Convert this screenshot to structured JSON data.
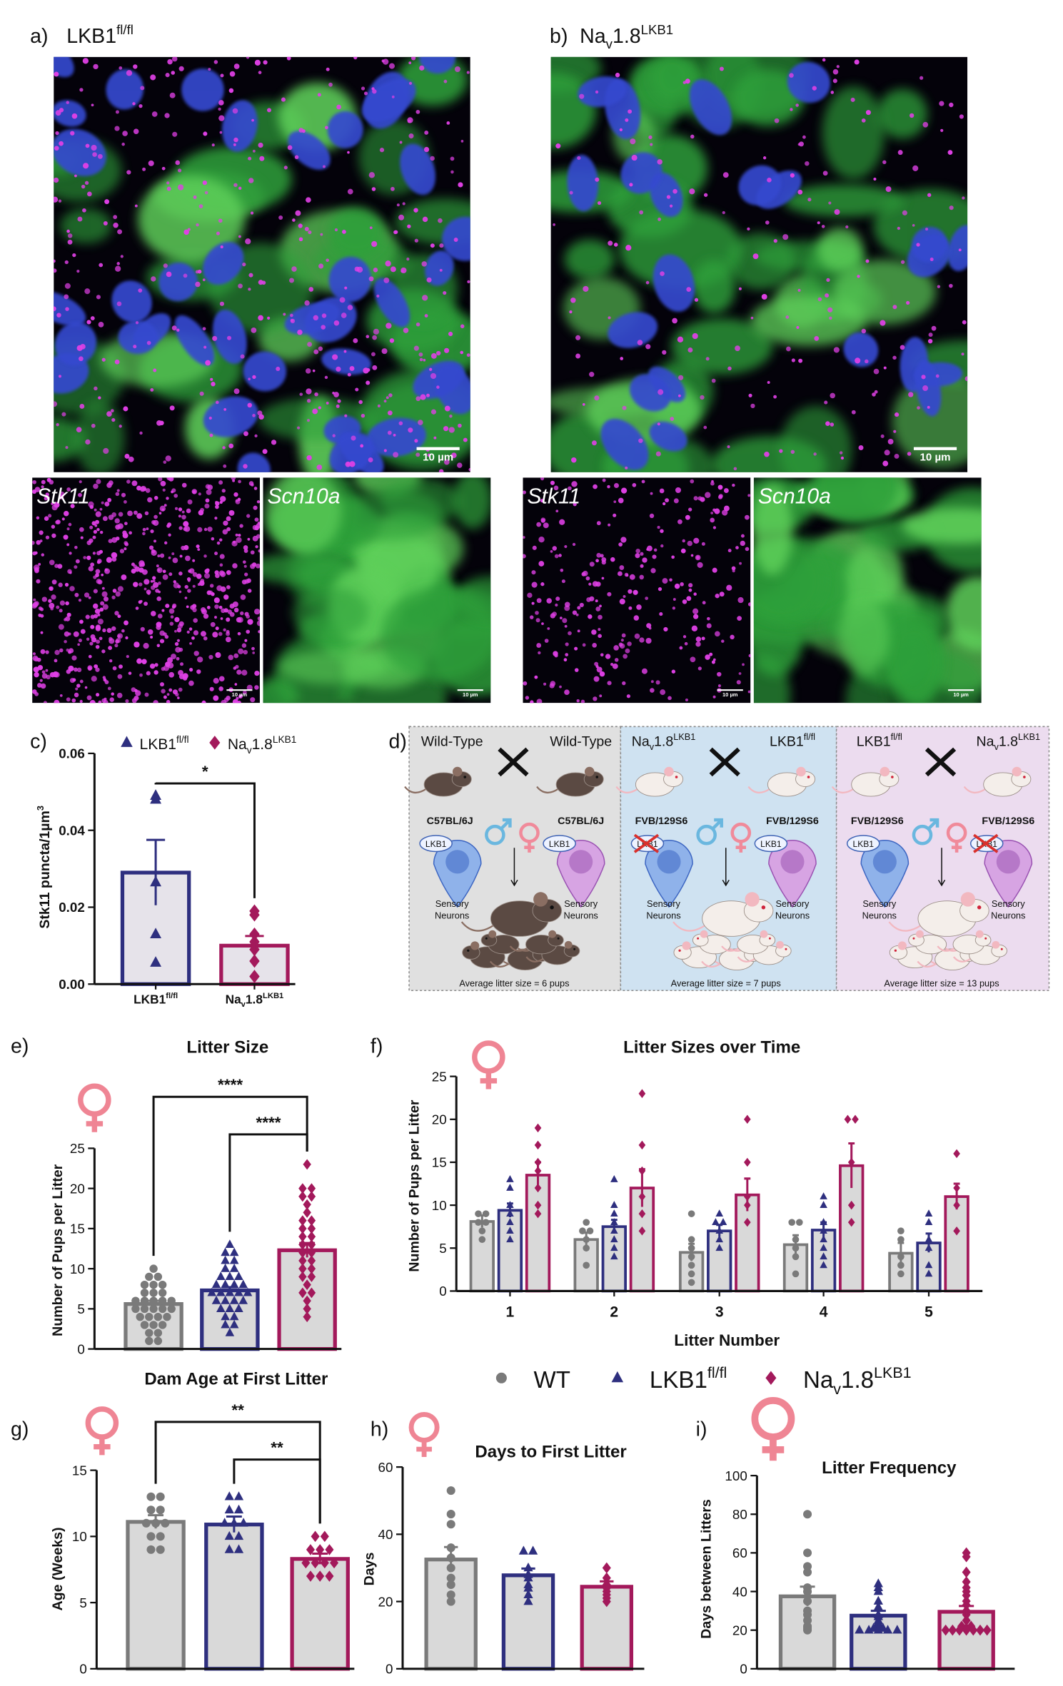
{
  "panels": {
    "a": {
      "label": "a)",
      "title": [
        {
          "t": "LKB1"
        },
        {
          "t": "fl/fl",
          "sup": true
        }
      ],
      "scale_bar": "10 µm",
      "insets": [
        {
          "label": "Stk11",
          "scale_bar": "10 µm"
        },
        {
          "label": "Scn10a",
          "scale_bar": "10 µm"
        }
      ]
    },
    "b": {
      "label": "b)",
      "title": [
        {
          "t": "Na"
        },
        {
          "t": "v",
          "sub": true
        },
        {
          "t": "1.8"
        },
        {
          "t": "LKB1",
          "sup": true
        }
      ],
      "scale_bar": "10 µm",
      "insets": [
        {
          "label": "Stk11",
          "scale_bar": "10 µm"
        },
        {
          "label": "Scn10a",
          "scale_bar": "10 µm"
        }
      ]
    },
    "d": {
      "label": "d)",
      "crosses": [
        {
          "male": [
            {
              "t": "Wild-Type"
            }
          ],
          "female": [
            {
              "t": "Wild-Type"
            }
          ],
          "male_strain": "C57BL/6J",
          "female_strain": "C57BL/6J",
          "male_gene": "LKB1",
          "female_gene": "LKB1",
          "male_cells": [
            "Sensory",
            "Neurons"
          ],
          "female_cells": [
            "Sensory",
            "Neurons"
          ],
          "knockout": null,
          "coat": "#5b4a43",
          "background": "#e0e0e0",
          "caption": "Average litter size = 6 pups"
        },
        {
          "male": [
            {
              "t": "Na"
            },
            {
              "t": "v",
              "sub": true
            },
            {
              "t": "1.8"
            },
            {
              "t": "LKB1",
              "sup": true
            }
          ],
          "female": [
            {
              "t": "LKB1"
            },
            {
              "t": "fl/fl",
              "sup": true
            }
          ],
          "male_strain": "FVB/129S6",
          "female_strain": "FVB/129S6",
          "male_gene": "LKB1",
          "female_gene": "LKB1",
          "male_cells": [
            "Sensory",
            "Neurons"
          ],
          "female_cells": [
            "Sensory",
            "Neurons"
          ],
          "knockout": "male",
          "coat": "#f4eeea",
          "background": "#cfe2f1",
          "caption": "Average litter size = 7 pups"
        },
        {
          "male": [
            {
              "t": "LKB1"
            },
            {
              "t": "fl/fl",
              "sup": true
            }
          ],
          "female": [
            {
              "t": "Na"
            },
            {
              "t": "v",
              "sub": true
            },
            {
              "t": "1.8"
            },
            {
              "t": "LKB1",
              "sup": true
            }
          ],
          "male_strain": "FVB/129S6",
          "female_strain": "FVB/129S6",
          "male_gene": "LKB1",
          "female_gene": "LKB1",
          "male_cells": [
            "Sensory",
            "Neurons"
          ],
          "female_cells": [
            "Sensory",
            "Neurons"
          ],
          "knockout": "female",
          "coat": "#f4eeea",
          "background": "#ecdcef",
          "caption": "Average litter size = 13 pups"
        }
      ]
    }
  },
  "chart_data": [
    {
      "type": "bar",
      "panel": "c)",
      "ylabel": [
        {
          "t": "Stk11 puncta/1µm"
        },
        {
          "t": "3",
          "sup": true
        }
      ],
      "categories": [
        [
          {
            "t": "LKB1"
          },
          {
            "t": "fl/fl",
            "sup": true
          }
        ],
        [
          {
            "t": "Na"
          },
          {
            "t": "v",
            "sub": true
          },
          {
            "t": "1.8"
          },
          {
            "t": "LKB1",
            "sup": true
          }
        ]
      ],
      "legend": [
        {
          "name": [
            {
              "t": "LKB1"
            },
            {
              "t": "fl/fl",
              "sup": true
            }
          ],
          "color": "#2e2f7f",
          "marker": "triangle"
        },
        {
          "name": [
            {
              "t": "Na"
            },
            {
              "t": "v",
              "sub": true
            },
            {
              "t": "1.8"
            },
            {
              "t": "LKB1",
              "sup": true
            }
          ],
          "color": "#a3195b",
          "marker": "diamond"
        }
      ],
      "values": [
        0.029,
        0.01
      ],
      "errors": [
        0.0085,
        0.0025
      ],
      "points": [
        [
          0.048,
          0.049,
          0.0265,
          0.013,
          0.0056
        ],
        [
          0.019,
          0.018,
          0.013,
          0.011,
          0.009,
          0.006,
          0.002
        ]
      ],
      "colors": [
        "#2e2f7f",
        "#a3195b"
      ],
      "markers": [
        "triangle",
        "diamond"
      ],
      "bar_fill": "#e6e3ea",
      "ylim": [
        0,
        0.06
      ],
      "yticks": [
        {
          "value": 0,
          "label": "0.00"
        },
        {
          "value": 0.02,
          "label": "0.02"
        },
        {
          "value": 0.04,
          "label": "0.04"
        },
        {
          "value": 0.06,
          "label": "0.06"
        }
      ],
      "significance": [
        {
          "between": [
            0,
            1
          ],
          "label": "*"
        }
      ]
    },
    {
      "type": "bar",
      "panel": "e)",
      "title": "Litter Size",
      "ylabel": "Number of Pups per Litter",
      "categories": [
        null,
        null,
        null
      ],
      "values": [
        5.6,
        7.3,
        12.3
      ],
      "errors": [
        0.4,
        0.4,
        0.9
      ],
      "points": [
        [
          10,
          9,
          9,
          8,
          8,
          8,
          7,
          7,
          7,
          6,
          6,
          6,
          6,
          6,
          5,
          5,
          5,
          5,
          5,
          4,
          4,
          4,
          4,
          3,
          3,
          3,
          2,
          2,
          1,
          1
        ],
        [
          13,
          12,
          12,
          11,
          11,
          10,
          10,
          9,
          9,
          9,
          8,
          8,
          8,
          8,
          7,
          7,
          7,
          7,
          7,
          6,
          6,
          6,
          6,
          5,
          5,
          5,
          4,
          4,
          3,
          3,
          2
        ],
        [
          23,
          20,
          20,
          19,
          19,
          18,
          17,
          16,
          16,
          15,
          15,
          14,
          14,
          13,
          13,
          12,
          12,
          11,
          11,
          10,
          10,
          9,
          9,
          8,
          7,
          7,
          6,
          5,
          4
        ]
      ],
      "colors": [
        "#7a7a7a",
        "#2e2f7f",
        "#a3195b"
      ],
      "markers": [
        "circle",
        "triangle",
        "diamond"
      ],
      "bar_fill": "#d9d9d9",
      "ylim": [
        0,
        25
      ],
      "yticks": [
        0,
        5,
        10,
        15,
        20,
        25
      ],
      "significance": [
        {
          "between": [
            0,
            2
          ],
          "label": "****"
        },
        {
          "between": [
            1,
            2
          ],
          "label": "****"
        }
      ]
    },
    {
      "type": "bar",
      "panel": "f)",
      "title": "Litter Sizes over Time",
      "ylabel": "Number of Pups per Litter",
      "xlabel": "Litter Number",
      "categories": [
        1,
        2,
        3,
        4,
        5
      ],
      "bar_fill": "#d9d9d9",
      "series": [
        {
          "name": [
            {
              "t": "WT"
            }
          ],
          "color": "#7a7a7a",
          "marker": "circle",
          "values": [
            8.1,
            6.0,
            4.5,
            5.4,
            4.4
          ],
          "errors": [
            0.7,
            0.8,
            1.0,
            1.1,
            1.2
          ],
          "points": [
            [
              9,
              9,
              8,
              8,
              7,
              6
            ],
            [
              8,
              7,
              7,
              6,
              5,
              3
            ],
            [
              9,
              6,
              5,
              4,
              3,
              2,
              1
            ],
            [
              8,
              8,
              6,
              5,
              4,
              2
            ],
            [
              7,
              6,
              4,
              3,
              2
            ]
          ]
        },
        {
          "name": [
            {
              "t": "LKB1"
            },
            {
              "t": "fl/fl",
              "sup": true
            }
          ],
          "color": "#2e2f7f",
          "marker": "triangle",
          "values": [
            9.4,
            7.5,
            7.0,
            7.1,
            5.6
          ],
          "errors": [
            0.8,
            0.8,
            0.7,
            0.9,
            1.1
          ],
          "points": [
            [
              13,
              12,
              10,
              9,
              8,
              7,
              6
            ],
            [
              13,
              10,
              9,
              8,
              7,
              6,
              5,
              4
            ],
            [
              9,
              8,
              8,
              7,
              6,
              5
            ],
            [
              11,
              10,
              8,
              7,
              6,
              5,
              4,
              3
            ],
            [
              9,
              8,
              6,
              5,
              3,
              2
            ]
          ]
        },
        {
          "name": [
            {
              "t": "Na"
            },
            {
              "t": "v",
              "sub": true
            },
            {
              "t": "1.8"
            },
            {
              "t": "LKB1",
              "sup": true
            }
          ],
          "color": "#a3195b",
          "marker": "diamond",
          "values": [
            13.5,
            12.0,
            11.2,
            14.6,
            11.0
          ],
          "errors": [
            1.5,
            2.2,
            1.9,
            2.6,
            1.5
          ],
          "points": [
            [
              19,
              17,
              15,
              14,
              12,
              10,
              9
            ],
            [
              23,
              17,
              14,
              11,
              9,
              7
            ],
            [
              20,
              15,
              11,
              10,
              8
            ],
            [
              20,
              20,
              15,
              10,
              8
            ],
            [
              16,
              12,
              10,
              7
            ]
          ]
        }
      ],
      "ylim": [
        0,
        25
      ],
      "yticks": [
        0,
        5,
        10,
        15,
        20,
        25
      ]
    },
    {
      "type": "bar",
      "panel": "g)",
      "title": "Dam Age at First Litter",
      "ylabel": "Age (Weeks)",
      "categories": [
        null,
        null,
        null
      ],
      "values": [
        11.1,
        10.9,
        8.3
      ],
      "errors": [
        0.5,
        0.6,
        0.4
      ],
      "points": [
        [
          13,
          13,
          12,
          12,
          11,
          11,
          11,
          10,
          10,
          9,
          9
        ],
        [
          13,
          13,
          12,
          12,
          11,
          11,
          11,
          10,
          10,
          9,
          9
        ],
        [
          10,
          10,
          9,
          9,
          9,
          8,
          8,
          8,
          8,
          7,
          7,
          7
        ]
      ],
      "colors": [
        "#7a7a7a",
        "#2e2f7f",
        "#a3195b"
      ],
      "markers": [
        "circle",
        "triangle",
        "diamond"
      ],
      "bar_fill": "#d9d9d9",
      "ylim": [
        0,
        15
      ],
      "yticks": [
        0,
        5,
        10,
        15
      ],
      "significance": [
        {
          "between": [
            0,
            2
          ],
          "label": "**"
        },
        {
          "between": [
            1,
            2
          ],
          "label": "**"
        }
      ]
    },
    {
      "type": "bar",
      "panel": "h)",
      "title": "Days to First Litter",
      "ylabel": "Days",
      "categories": [
        null,
        null,
        null
      ],
      "values": [
        32.5,
        27.8,
        24.4
      ],
      "errors": [
        3.7,
        2.0,
        1.6
      ],
      "points": [
        [
          53,
          46,
          43,
          36,
          33,
          30,
          27,
          25,
          22,
          20
        ],
        [
          35,
          35,
          30,
          28,
          27,
          25,
          24,
          22,
          20
        ],
        [
          30,
          27,
          25,
          24,
          23,
          22,
          21,
          20
        ]
      ],
      "colors": [
        "#7a7a7a",
        "#2e2f7f",
        "#a3195b"
      ],
      "markers": [
        "circle",
        "triangle",
        "diamond"
      ],
      "bar_fill": "#d9d9d9",
      "ylim": [
        0,
        60
      ],
      "yticks": [
        0,
        20,
        40,
        60
      ]
    },
    {
      "type": "bar",
      "panel": "i)",
      "title": "Litter Frequency",
      "ylabel": "Days between Litters",
      "categories": [
        null,
        null,
        null
      ],
      "values": [
        37.5,
        27.5,
        29.5
      ],
      "errors": [
        5,
        2.5,
        3
      ],
      "points": [
        [
          80,
          60,
          53,
          50,
          42,
          40,
          35,
          30,
          28,
          25,
          22,
          21,
          20
        ],
        [
          44,
          42,
          40,
          35,
          32,
          28,
          27,
          25,
          24,
          23,
          22,
          21,
          21,
          20,
          20,
          20,
          20,
          20
        ],
        [
          60,
          58,
          50,
          45,
          42,
          40,
          38,
          35,
          33,
          30,
          28,
          25,
          22,
          22,
          21,
          20,
          20,
          20,
          20,
          20,
          20,
          20
        ]
      ],
      "colors": [
        "#7a7a7a",
        "#2e2f7f",
        "#a3195b"
      ],
      "markers": [
        "circle",
        "triangle",
        "diamond"
      ],
      "bar_fill": "#d9d9d9",
      "ylim": [
        0,
        100
      ],
      "yticks": [
        0,
        20,
        40,
        60,
        80,
        100
      ]
    }
  ]
}
